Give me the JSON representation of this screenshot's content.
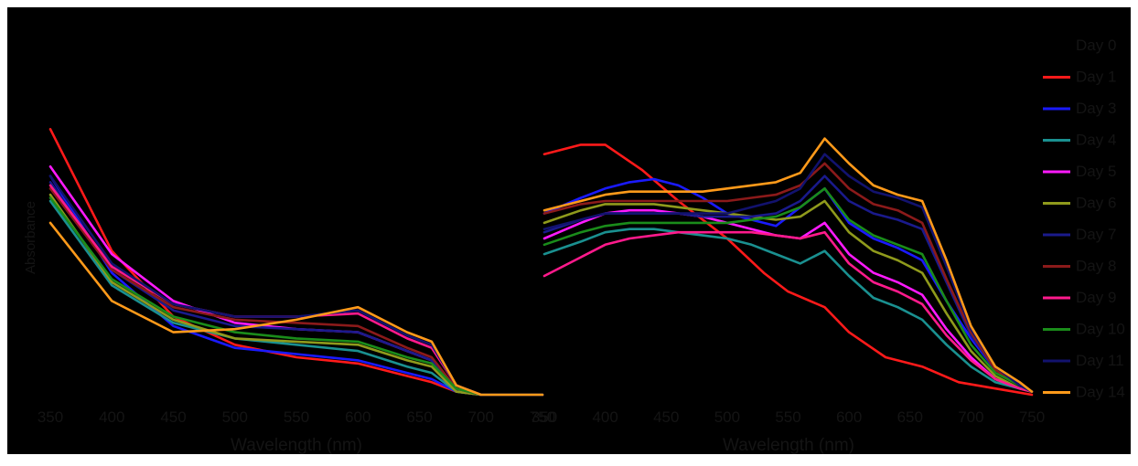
{
  "chart_data": [
    {
      "type": "line",
      "xlabel": "Wavelength (nm)",
      "ylabel": "Absorbance",
      "xlim": [
        350,
        750
      ],
      "ylim": [
        0,
        1
      ],
      "xticks": [
        "350",
        "400",
        "450",
        "500",
        "550",
        "600",
        "650",
        "700",
        "750"
      ],
      "grid": false,
      "series": [
        {
          "name": "Day 1",
          "color": "#ff1a1a",
          "x": [
            350,
            400,
            450,
            500,
            550,
            600,
            640,
            660,
            680,
            700,
            750
          ],
          "y": [
            0.85,
            0.46,
            0.25,
            0.16,
            0.12,
            0.1,
            0.06,
            0.04,
            0.01,
            0.0,
            0.0
          ]
        },
        {
          "name": "Day 3",
          "color": "#1a1aff",
          "x": [
            350,
            400,
            450,
            500,
            550,
            600,
            640,
            660,
            680,
            700,
            750
          ],
          "y": [
            0.7,
            0.39,
            0.22,
            0.15,
            0.13,
            0.11,
            0.07,
            0.05,
            0.01,
            0.0,
            0.0
          ]
        },
        {
          "name": "Day 4",
          "color": "#1a9090",
          "x": [
            350,
            400,
            450,
            500,
            550,
            600,
            640,
            660,
            680,
            700,
            750
          ],
          "y": [
            0.62,
            0.35,
            0.23,
            0.18,
            0.16,
            0.14,
            0.09,
            0.07,
            0.01,
            0.0,
            0.0
          ]
        },
        {
          "name": "Day 5",
          "color": "#ff1aff",
          "x": [
            350,
            400,
            450,
            500,
            550,
            600,
            640,
            660,
            680,
            700,
            750
          ],
          "y": [
            0.73,
            0.45,
            0.3,
            0.23,
            0.21,
            0.2,
            0.14,
            0.11,
            0.02,
            0.0,
            0.0
          ]
        },
        {
          "name": "Day 6",
          "color": "#8f9a1c",
          "x": [
            350,
            400,
            450,
            500,
            550,
            600,
            640,
            660,
            680,
            700,
            750
          ],
          "y": [
            0.64,
            0.36,
            0.24,
            0.18,
            0.17,
            0.16,
            0.11,
            0.09,
            0.01,
            0.0,
            0.0
          ]
        },
        {
          "name": "Day 7",
          "color": "#1a1a8c",
          "x": [
            350,
            400,
            450,
            500,
            550,
            600,
            640,
            660,
            680,
            700,
            750
          ],
          "y": [
            0.68,
            0.4,
            0.27,
            0.22,
            0.21,
            0.2,
            0.14,
            0.11,
            0.02,
            0.0,
            0.0
          ]
        },
        {
          "name": "Day 8",
          "color": "#8b1a1a",
          "x": [
            350,
            400,
            450,
            500,
            550,
            600,
            640,
            660,
            680,
            700,
            750
          ],
          "y": [
            0.66,
            0.4,
            0.28,
            0.24,
            0.23,
            0.22,
            0.15,
            0.12,
            0.02,
            0.0,
            0.0
          ]
        },
        {
          "name": "Day 9",
          "color": "#ff1a8c",
          "x": [
            350,
            400,
            450,
            500,
            550,
            600,
            640,
            660,
            680,
            700,
            750
          ],
          "y": [
            0.67,
            0.41,
            0.29,
            0.25,
            0.25,
            0.26,
            0.18,
            0.15,
            0.03,
            0.0,
            0.0
          ]
        },
        {
          "name": "Day 10",
          "color": "#1a8c1a",
          "x": [
            350,
            400,
            450,
            500,
            550,
            600,
            640,
            660,
            680,
            700,
            750
          ],
          "y": [
            0.63,
            0.37,
            0.25,
            0.2,
            0.18,
            0.17,
            0.12,
            0.1,
            0.02,
            0.0,
            0.0
          ]
        },
        {
          "name": "Day 11",
          "color": "#12126e",
          "x": [
            350,
            400,
            450,
            500,
            550,
            600,
            640,
            660,
            680,
            700,
            750
          ],
          "y": [
            0.7,
            0.42,
            0.29,
            0.25,
            0.25,
            0.27,
            0.19,
            0.16,
            0.03,
            0.0,
            0.0
          ]
        },
        {
          "name": "Day 14",
          "color": "#ff9a1a",
          "x": [
            350,
            400,
            450,
            500,
            550,
            600,
            640,
            660,
            680,
            700,
            750
          ],
          "y": [
            0.55,
            0.3,
            0.2,
            0.21,
            0.24,
            0.28,
            0.2,
            0.17,
            0.03,
            0.0,
            0.0
          ]
        }
      ]
    },
    {
      "type": "line",
      "xlabel": "Wavelength (nm)",
      "ylabel": "",
      "xlim": [
        350,
        750
      ],
      "ylim": [
        0,
        1
      ],
      "xticks": [
        "350",
        "400",
        "450",
        "500",
        "550",
        "600",
        "650",
        "700",
        "750"
      ],
      "grid": false,
      "series": [
        {
          "name": "Day 1",
          "color": "#ff1a1a",
          "x": [
            350,
            380,
            400,
            430,
            460,
            500,
            530,
            550,
            580,
            600,
            630,
            660,
            690,
            720,
            750
          ],
          "y": [
            0.77,
            0.8,
            0.8,
            0.72,
            0.62,
            0.5,
            0.39,
            0.33,
            0.28,
            0.2,
            0.12,
            0.09,
            0.04,
            0.02,
            0.0
          ]
        },
        {
          "name": "Day 3",
          "color": "#1a1aff",
          "x": [
            350,
            380,
            400,
            420,
            440,
            460,
            480,
            500,
            520,
            540,
            560,
            580,
            600,
            620,
            640,
            660,
            680,
            700,
            720,
            740,
            750
          ],
          "y": [
            0.58,
            0.63,
            0.66,
            0.68,
            0.69,
            0.67,
            0.63,
            0.58,
            0.56,
            0.54,
            0.6,
            0.66,
            0.55,
            0.5,
            0.47,
            0.43,
            0.3,
            0.18,
            0.08,
            0.03,
            0.01
          ]
        },
        {
          "name": "Day 4",
          "color": "#1a9090",
          "x": [
            350,
            380,
            400,
            420,
            440,
            460,
            480,
            500,
            520,
            540,
            560,
            580,
            600,
            620,
            640,
            660,
            680,
            700,
            720,
            740,
            750
          ],
          "y": [
            0.45,
            0.49,
            0.52,
            0.53,
            0.53,
            0.52,
            0.51,
            0.5,
            0.48,
            0.45,
            0.42,
            0.46,
            0.38,
            0.31,
            0.28,
            0.24,
            0.16,
            0.09,
            0.04,
            0.02,
            0.01
          ]
        },
        {
          "name": "Day 5",
          "color": "#ff1aff",
          "x": [
            350,
            380,
            400,
            420,
            440,
            460,
            480,
            500,
            520,
            540,
            560,
            580,
            600,
            620,
            640,
            660,
            680,
            700,
            720,
            740,
            750
          ],
          "y": [
            0.5,
            0.55,
            0.58,
            0.59,
            0.59,
            0.58,
            0.57,
            0.55,
            0.53,
            0.51,
            0.5,
            0.55,
            0.45,
            0.39,
            0.36,
            0.32,
            0.21,
            0.12,
            0.05,
            0.02,
            0.01
          ]
        },
        {
          "name": "Day 6",
          "color": "#8f9a1c",
          "x": [
            350,
            380,
            400,
            420,
            440,
            460,
            480,
            500,
            520,
            540,
            560,
            580,
            600,
            620,
            640,
            660,
            680,
            700,
            720,
            740,
            750
          ],
          "y": [
            0.55,
            0.59,
            0.61,
            0.61,
            0.61,
            0.6,
            0.59,
            0.58,
            0.57,
            0.56,
            0.57,
            0.62,
            0.52,
            0.46,
            0.43,
            0.39,
            0.26,
            0.14,
            0.06,
            0.02,
            0.01
          ]
        },
        {
          "name": "Day 7",
          "color": "#1a1a8c",
          "x": [
            350,
            380,
            400,
            420,
            440,
            460,
            480,
            500,
            520,
            540,
            560,
            580,
            600,
            620,
            640,
            660,
            680,
            700,
            720,
            740,
            750
          ],
          "y": [
            0.52,
            0.56,
            0.58,
            0.58,
            0.58,
            0.58,
            0.57,
            0.57,
            0.57,
            0.58,
            0.62,
            0.7,
            0.62,
            0.58,
            0.56,
            0.53,
            0.36,
            0.19,
            0.08,
            0.03,
            0.01
          ]
        },
        {
          "name": "Day 8",
          "color": "#8b1a1a",
          "x": [
            350,
            380,
            400,
            420,
            440,
            460,
            480,
            500,
            520,
            540,
            560,
            580,
            600,
            620,
            640,
            660,
            680,
            700,
            720,
            740,
            750
          ],
          "y": [
            0.58,
            0.61,
            0.62,
            0.62,
            0.62,
            0.62,
            0.62,
            0.62,
            0.63,
            0.64,
            0.67,
            0.74,
            0.66,
            0.61,
            0.59,
            0.55,
            0.37,
            0.2,
            0.08,
            0.03,
            0.01
          ]
        },
        {
          "name": "Day 9",
          "color": "#ff1a8c",
          "x": [
            350,
            380,
            400,
            420,
            440,
            460,
            480,
            500,
            520,
            540,
            560,
            580,
            600,
            620,
            640,
            660,
            680,
            700,
            720,
            740,
            750
          ],
          "y": [
            0.38,
            0.44,
            0.48,
            0.5,
            0.51,
            0.52,
            0.52,
            0.52,
            0.52,
            0.51,
            0.5,
            0.52,
            0.42,
            0.36,
            0.33,
            0.29,
            0.19,
            0.11,
            0.05,
            0.02,
            0.01
          ]
        },
        {
          "name": "Day 10",
          "color": "#1a8c1a",
          "x": [
            350,
            380,
            400,
            420,
            440,
            460,
            480,
            500,
            520,
            540,
            560,
            580,
            600,
            620,
            640,
            660,
            680,
            700,
            720,
            740,
            750
          ],
          "y": [
            0.48,
            0.52,
            0.54,
            0.55,
            0.55,
            0.55,
            0.55,
            0.55,
            0.56,
            0.57,
            0.6,
            0.66,
            0.56,
            0.51,
            0.48,
            0.45,
            0.3,
            0.16,
            0.07,
            0.03,
            0.01
          ]
        },
        {
          "name": "Day 11",
          "color": "#12126e",
          "x": [
            350,
            380,
            400,
            420,
            440,
            460,
            480,
            500,
            520,
            540,
            560,
            580,
            600,
            620,
            640,
            660,
            680,
            700,
            720,
            740,
            750
          ],
          "y": [
            0.53,
            0.56,
            0.58,
            0.58,
            0.58,
            0.58,
            0.58,
            0.58,
            0.6,
            0.62,
            0.66,
            0.77,
            0.7,
            0.65,
            0.63,
            0.6,
            0.41,
            0.21,
            0.09,
            0.03,
            0.01
          ]
        },
        {
          "name": "Day 14",
          "color": "#ff9a1a",
          "x": [
            350,
            380,
            400,
            420,
            440,
            460,
            480,
            500,
            520,
            540,
            560,
            580,
            600,
            620,
            640,
            660,
            680,
            700,
            720,
            740,
            750
          ],
          "y": [
            0.59,
            0.62,
            0.64,
            0.65,
            0.65,
            0.65,
            0.65,
            0.66,
            0.67,
            0.68,
            0.71,
            0.82,
            0.74,
            0.67,
            0.64,
            0.62,
            0.43,
            0.22,
            0.09,
            0.04,
            0.01
          ]
        }
      ]
    }
  ],
  "legend": {
    "placement": "right",
    "entries": [
      {
        "label": "Day 0",
        "color": ""
      },
      {
        "label": "Day 1",
        "color": "#ff1a1a"
      },
      {
        "label": "Day 3",
        "color": "#1a1aff"
      },
      {
        "label": "Day 4",
        "color": "#1a9090"
      },
      {
        "label": "Day 5",
        "color": "#ff1aff"
      },
      {
        "label": "Day 6",
        "color": "#8f9a1c"
      },
      {
        "label": "Day 7",
        "color": "#1a1a8c"
      },
      {
        "label": "Day 8",
        "color": "#8b1a1a"
      },
      {
        "label": "Day 9",
        "color": "#ff1a8c"
      },
      {
        "label": "Day 10",
        "color": "#1a8c1a"
      },
      {
        "label": "Day 11",
        "color": "#12126e"
      },
      {
        "label": "Day 14",
        "color": "#ff9a1a"
      }
    ]
  }
}
